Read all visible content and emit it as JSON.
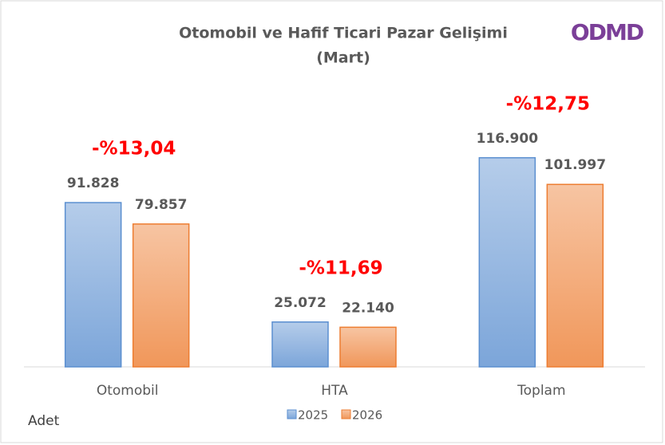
{
  "chart_data": {
    "type": "bar",
    "title": "Otomobil ve Hafif Ticari Pazar Gelişimi",
    "subtitle": "(Mart)",
    "logo": "ODMD",
    "y_label": "Adet",
    "categories": [
      "Otomobil",
      "HTA",
      "Toplam"
    ],
    "series": [
      {
        "name": "2025",
        "color": "#5b8fd0",
        "values": [
          91828,
          25072,
          116900
        ],
        "value_labels": [
          "91.828",
          "25.072",
          "116.900"
        ]
      },
      {
        "name": "2026",
        "color": "#ed7d31",
        "values": [
          79857,
          22140,
          101997
        ],
        "value_labels": [
          "79.857",
          "22.140",
          "101.997"
        ]
      }
    ],
    "annotations": [
      "-%13,04",
      "-%11,69",
      "-%12,75"
    ],
    "annotation_color": "#ff0000",
    "ylim": [
      0,
      140000
    ]
  }
}
